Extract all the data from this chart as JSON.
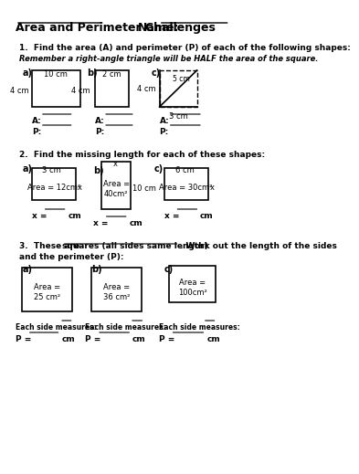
{
  "title": "Area and Perimeter Challenges",
  "name_label": "Name:",
  "bg_color": "#ffffff",
  "q1_intro": "1.  Find the area (A) and perimeter (P) of each of the following shapes:",
  "q1_italic": "Remember a right-angle triangle will be HALF the area of the square.",
  "q1a_label": "a)",
  "q1a_top": "10 cm",
  "q1a_left": "4 cm",
  "q1b_label": "b)",
  "q1b_top": "2 cm",
  "q1b_left": "4 cm",
  "q1c_label": "c)",
  "q1c_hyp": "5 cm",
  "q1c_left": "4 cm",
  "q1c_bot": "3 cm",
  "q2_intro": "2.  Find the missing length for each of these shapes:",
  "q2a_label": "a)",
  "q2a_top": "3 cm",
  "q2a_area": "Area = 12cm²",
  "q2a_x": "x",
  "q2b_label": "b)",
  "q2b_x_top": "x",
  "q2b_area": "Area =\n40cm²",
  "q2b_right": "10 cm",
  "q2c_label": "c)",
  "q2c_top": "6 cm",
  "q2c_area": "Area = 30cm²",
  "q2c_x": "x",
  "q3_intro_pre": "3.  These are ",
  "q3_intro_underline": "squares (all sides same length)",
  "q3_intro_post": ". Work out the length of the sides",
  "q3_intro2": "and the perimeter (P):",
  "q3a_label": "a)",
  "q3a_area": "Area =\n25 cm²",
  "q3b_label": "b)",
  "q3b_area": "Area =\n36 cm²",
  "q3c_label": "c)",
  "q3c_area": "Area =\n100cm²",
  "ans_a": "A:",
  "ans_p": "P:",
  "x_eq": "x =",
  "cm": "cm",
  "each_side": "Each side measures:",
  "p_eq": "P ="
}
